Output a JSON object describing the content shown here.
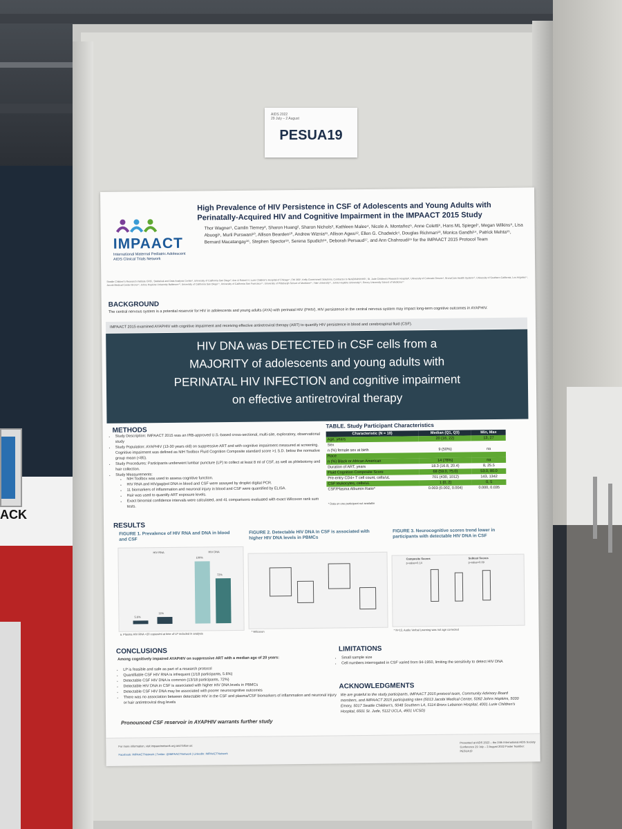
{
  "id_card": {
    "small_lines": [
      "AIDS 2022",
      "29 July – 2 August"
    ],
    "code": "PESUA19"
  },
  "booth": {
    "sign_text": "ACK"
  },
  "poster": {
    "title": "High Prevalence of HIV Persistence in CSF of Adolescents and Young Adults with Perinatally-Acquired HIV and Cognitive Impairment in the IMPAACT 2015 Study",
    "logo": {
      "name": "IMPAACT",
      "subtitle_line1": "International Maternal Pediatric Adolescent",
      "subtitle_line2": "AIDS Clinical Trials Network"
    },
    "authors": "Thor Wagner¹, Camlin Tierney², Sharon Huang², Sharon Nichols³, Kathleen Malee⁴, Nicole A. Montañez⁵, Anne Coletti⁶, Hans ML Spiegel⁷, Megan Wilkins⁸, Lisa Abuogi⁹, Murli Purswani¹⁰, Allison Bearden¹⁰, Andrew Wiznia¹¹, Allison Agwu¹², Ellen G. Chadwick⁴, Douglas Richman¹³, Monica Gandhi¹⁴, Patrick Mehta¹⁵, Bernard Macatangay¹⁶, Stephen Spector¹⁸, Serena Spudich¹⁹, Deborah Persaud¹⁷, and Ann Chahroudi¹⁹ for the IMPAACT 2015 Protocol Team",
    "affiliations": "Seattle Children's Research Institute CRS¹, Statistical and Data Analysis Center², University of California San Diego³, Ann & Robert H. Lurie Children's Hospital of Chicago⁴, FHI 360⁵, Kelly Government Solutions, Contractor to NIAID/NIH/HHS⁶, St. Jude Children's Research Hospital⁸, University of Colorado Denver⁹, BronxCare Health System¹⁰, University of Southern California, Los Angeles¹¹, Jacobi Medical Center Bronx¹², Johns Hopkins University Baltimore¹³, University of California San Diego¹⁴, University of California San Francisco¹⁵, University of Pittsburgh School of Medicine¹⁶, Yale University¹⁷, Johns Hopkins University¹⁸, Emory University School of Medicine¹⁹",
    "background": {
      "heading": "BACKGROUND",
      "text": "The central nervous system is a potential reservoir for HIV in adolescents and young adults (AYA) with perinatal HIV (PHIV). HIV persistence in the central nervous system may impact long-term cognitive outcomes in AYAPHIV.",
      "bar_text": "IMPAACT 2015 examined AYAPHIV with cognitive impairment and receiving effective antiretroviral therapy (ART) to quantify HIV persistence in blood and cerebrospinal fluid (CSF)."
    },
    "banner": [
      "HIV DNA was DETECTED in CSF cells from a",
      "MAJORITY of adolescents and young adults with",
      "PERINATAL HIV INFECTION and cognitive impairment",
      "on effective antiretroviral therapy"
    ],
    "methods": {
      "heading": "METHODS",
      "items": [
        "Study Description: IMPAACT 2015 was an IRB-approved U.S.-based cross-sectional, multi-site, exploratory, observational study",
        "Study Population: AYAPHIV (13-30 years old) on suppressive ART and with cognitive impairment measured at screening. Cognitive impairment was defined as NIH Toolbox Fluid Cognition Composite standard score >1 S.D. below the normative group mean (<85).",
        "Study Procedures: Participants underwent lumbar puncture (LP) to collect at least 8 ml of CSF, as well as phlebotomy and hair collection.",
        "Study Measurements:"
      ],
      "subitems": [
        "NIH Toolbox was used to assess cognitive function.",
        "HIV RNA and HIVgag/pol DNA in blood and CSF were assayed by droplet digital PCR.",
        "11 biomarkers of inflammation and neuronal injury in blood and CSF were quantified by ELISA.",
        "Hair was used to quantify ART exposure levels.",
        "Exact binomial confidence intervals were calculated, and 41 comparisons evaluated with exact Wilcoxon rank sum tests."
      ]
    },
    "table": {
      "title": "TABLE. Study Participant Characteristics",
      "headers": [
        "Characteristic (N = 18)",
        "Median (Q1, Q3)",
        "Min, Max"
      ],
      "rows": [
        {
          "c": "Age, years",
          "m": "20 (16, 22)",
          "r": "13, 27",
          "g": true
        },
        {
          "c": "Sex",
          "m": "",
          "r": "",
          "g": false
        },
        {
          "c": "n (%) female sex at birth",
          "m": "9 (50%)",
          "r": "na",
          "g": false
        },
        {
          "c": "Race",
          "m": "",
          "r": "",
          "g": true
        },
        {
          "c": "n (%) Black or African American",
          "m": "14 (78%)",
          "r": "na",
          "g": true
        },
        {
          "c": "Duration of ART, years",
          "m": "18.3 (16.8, 20.4)",
          "r": "8, 25.5",
          "g": false
        },
        {
          "c": "Fluid Cognition Composite Score",
          "m": "68 (59.0, 75.0)",
          "r": "53.0, 80.0",
          "g": true
        },
        {
          "c": "Pre-entry CD4+ T cell count, cells/uL",
          "m": "701 (430, 1012)",
          "r": "143, 1342",
          "g": false
        },
        {
          "c": "CSF leukocytes, cells/uL",
          "m": "1 (0, 2)",
          "r": "0, 5",
          "g": true
        },
        {
          "c": "CSF/Plasma Albumin Ratio*",
          "m": "0.003 (0.002, 0.004)",
          "r": "0.000, 0.035",
          "g": false
        }
      ],
      "footnote": "* Data on one participant not available"
    },
    "results": {
      "heading": "RESULTS",
      "fig1_title": "FIGURE 1. Prevalence of HIV RNA and DNA in blood and CSF",
      "fig1_labels": [
        "HIV RNA",
        "HIV DNA",
        "5.6%",
        "11%",
        "100%",
        "72%"
      ],
      "fig1_values": [
        5.6,
        11,
        100,
        72
      ],
      "fig1_note": "a. Plasma HIV RNA <20 copies/ml at time of LP included in analysis",
      "fig2_title": "FIGURE 2. Detectable HIV DNA in CSF is associated with higher HIV DNA levels in PBMCs",
      "fig2_note": "* Wilcoxon",
      "fig3_title": "FIGURE 3. Neurocognitive scores trend lower in participants with detectable HIV DNA in CSF",
      "fig3_labels": [
        "Composite Scores",
        "p-value=0.14",
        "Subtest Scores",
        "p-value=0.09"
      ],
      "fig3_note": "* N=15; Audio Verbal Learning was not age corrected"
    },
    "conclusions": {
      "heading": "CONCLUSIONS",
      "lead": "Among cognitively impaired AYAPHIV on suppressive ART with a median age of 20 years:",
      "items": [
        "LP is feasible and safe as part of a research protocol",
        "Quantifiable CSF HIV RNA is infrequent (1/18 participants, 5.6%)",
        "Detectable CSF HIV DNA is common (13/18 participants, 72%)",
        "Detectable HIV DNA in CSF is associated with higher HIV DNA levels in PBMCs",
        "Detectable CSF HIV DNA may be associated with poorer neurocognitive outcomes",
        "There was no association between detectable HIV in the CSF and plasma/CSF biomarkers of inflammation and neuronal injury or hair antiretroviral drug levels"
      ],
      "closing": "Pronounced CSF reservoir in AYAPHIV warrants further study"
    },
    "limitations": {
      "heading": "LIMITATIONS",
      "items": [
        "Small sample size",
        "Cell numbers interrogated in CSF varied from 94-1950, limiting the sensitivity to detect HIV DNA"
      ]
    },
    "acknowledgments": {
      "heading": "ACKNOWLEDGMENTS",
      "text": "We are grateful to the study participants, IMPAACT 2015 protocol team, Community Advisory Board members, and IMPAACT 2015 participating sites (5013 Jacobi Medical Center, 5092 Johns Hopkins, 5030 Emory, 5017 Seattle Children's, 5048 Southern LA, 5114 Bronx Lebanon Hospital, 4001 Lurie Children's Hospital, 6501 St. Jude, 5112 UCLA, 4601 UCSD)"
    },
    "footer": {
      "left_line1": "For more information, visit impaactnetwork.org and follow us:",
      "left_line2": "Facebook: IMPAACTNetwork | Twitter: @IMPAACTNetwork | LinkedIn: IMPAACTNetwork",
      "right": "Presented at AIDS 2022 – the 24th International AIDS Society Conference 29 July – 2 August 2022 Poster Number: PESUA19"
    }
  }
}
